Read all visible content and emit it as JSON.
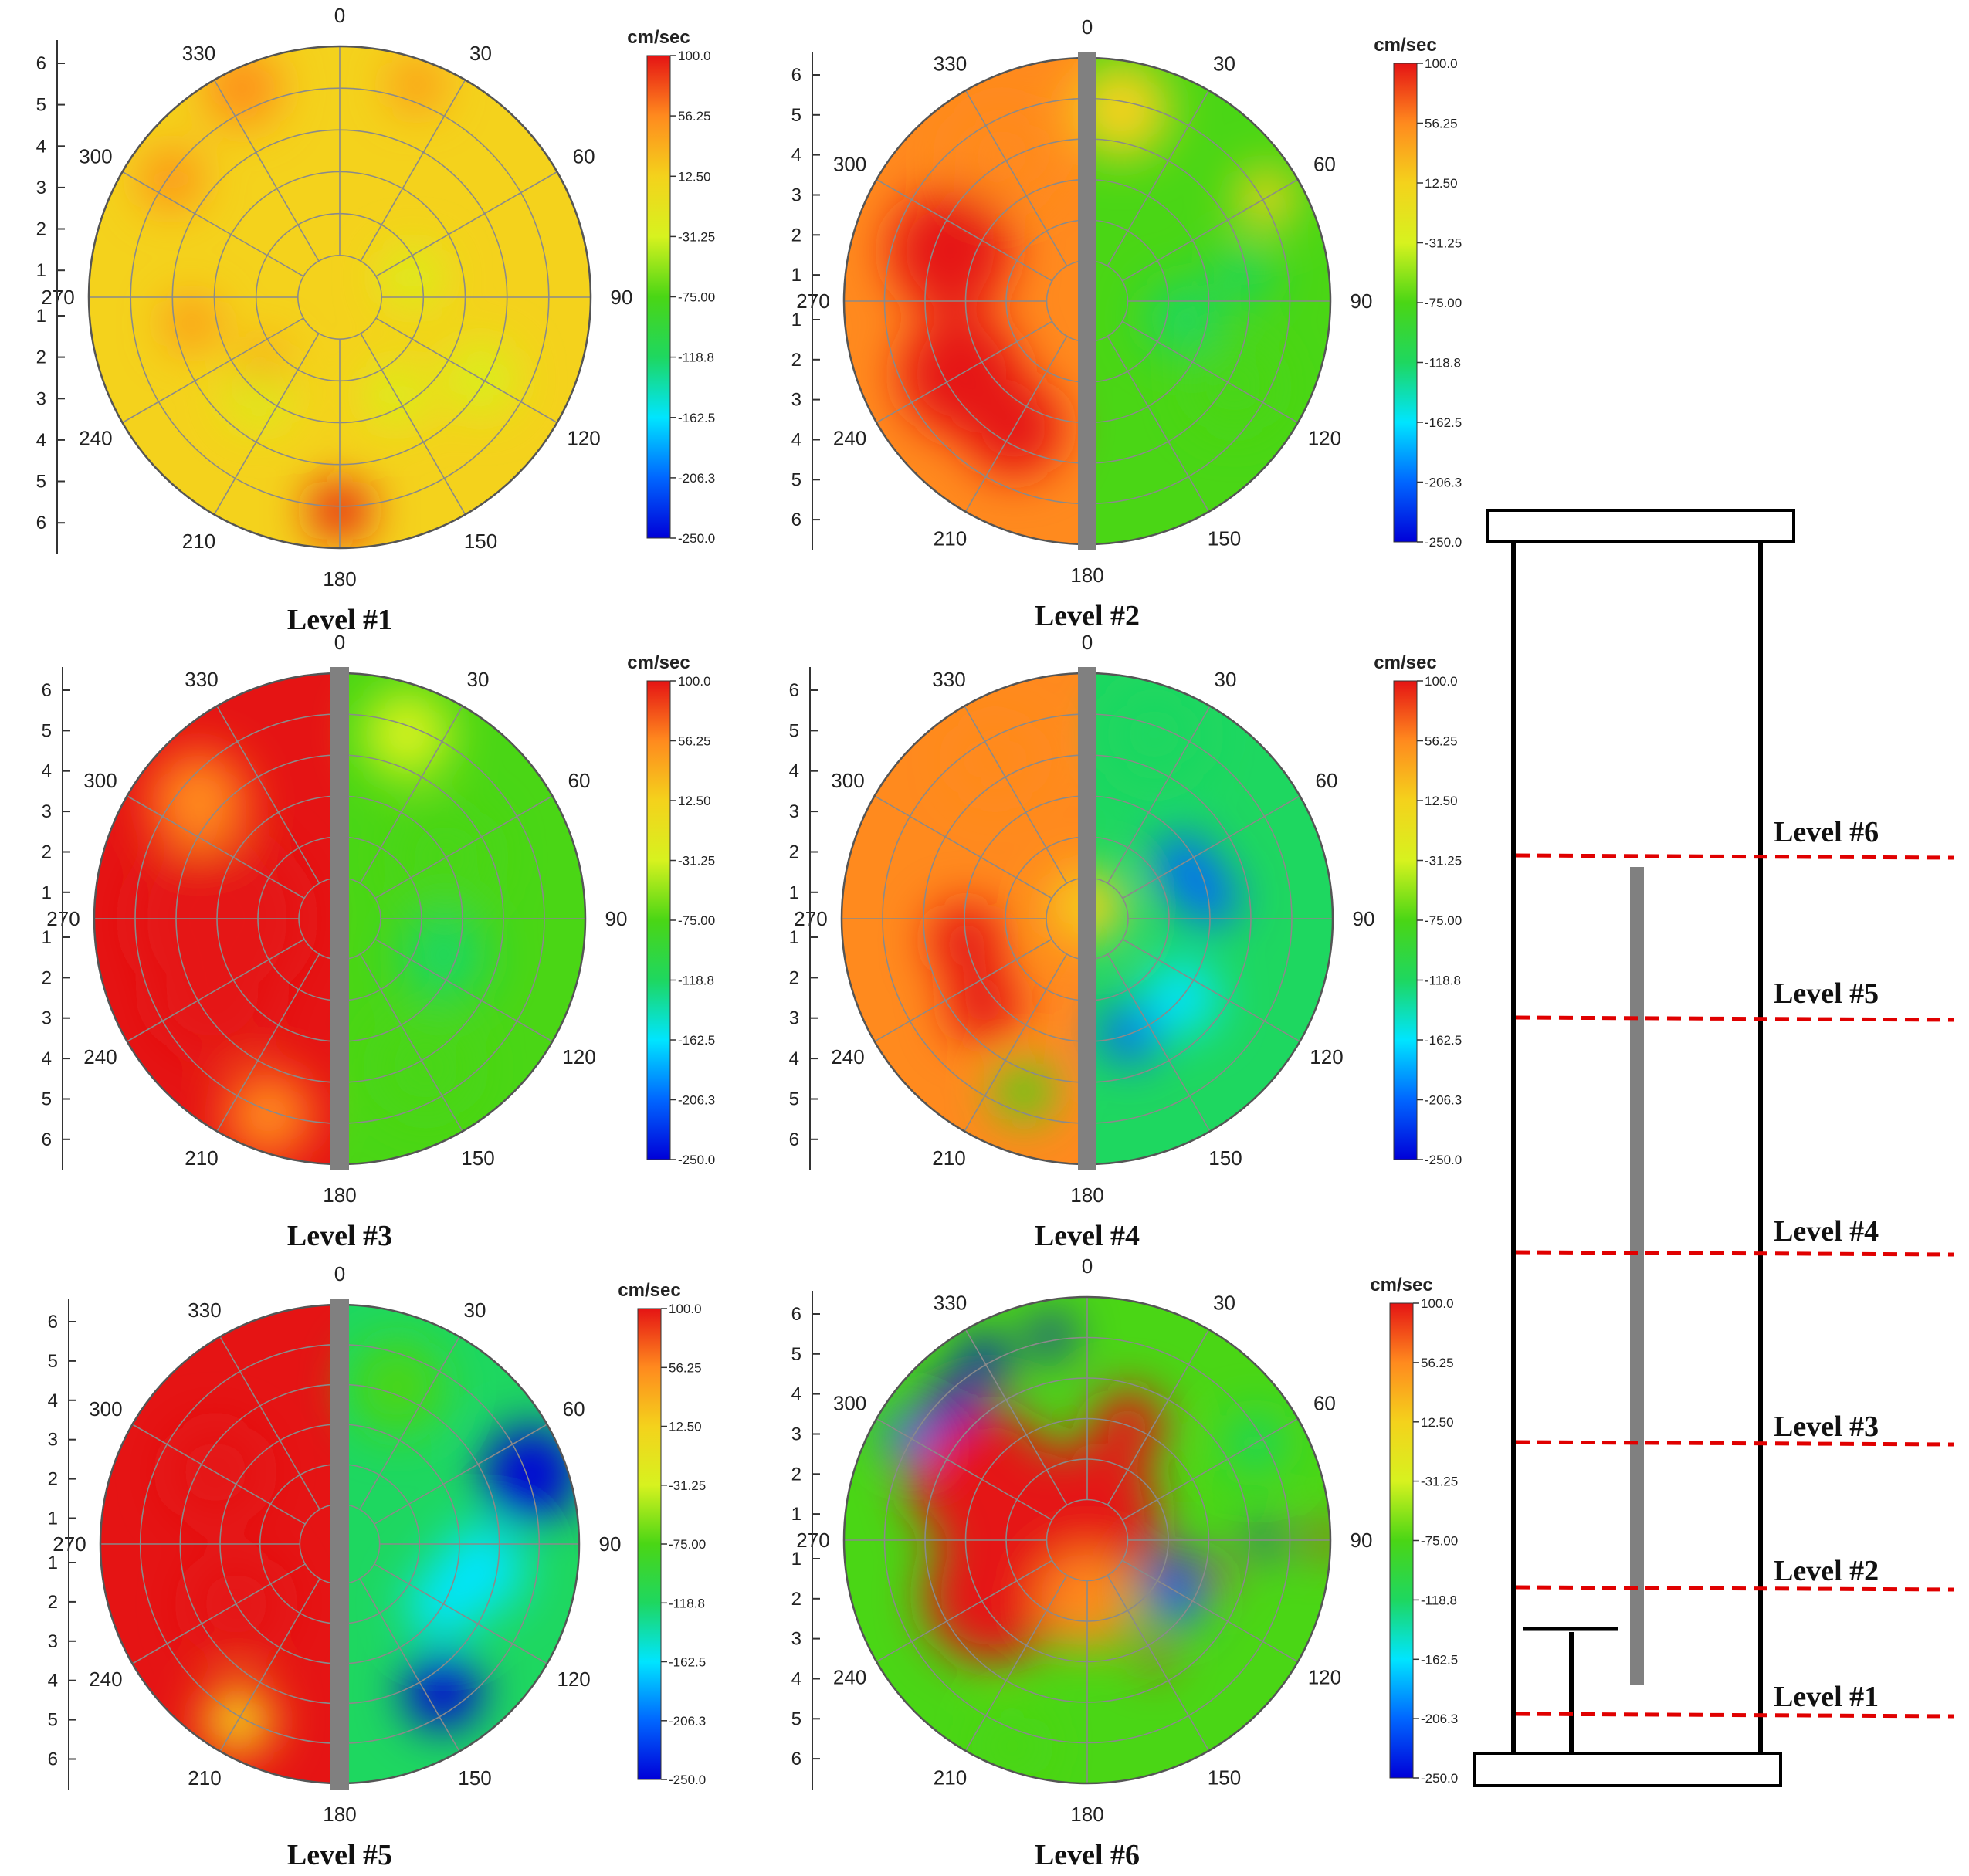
{
  "figure": {
    "colorbar": {
      "unit": "cm/sec",
      "ticks": [
        "100.0",
        "56.25",
        "12.50",
        "-31.25",
        "-75.00",
        "-118.8",
        "-162.5",
        "-206.3",
        "-250.0"
      ],
      "colors": [
        "#0000d8",
        "#0066ff",
        "#00e5ff",
        "#1ed760",
        "#4ad615",
        "#d7f21f",
        "#f4d21c",
        "#ff8a1e",
        "#e51414"
      ]
    },
    "angle_labels": [
      "0",
      "30",
      "60",
      "90",
      "120",
      "150",
      "180",
      "210",
      "240",
      "270",
      "300",
      "330"
    ],
    "radial_ticks": [
      "6",
      "5",
      "4",
      "3",
      "2",
      "1",
      "1",
      "2",
      "3",
      "4",
      "5",
      "6"
    ],
    "probe_color": "#808080",
    "levels_marker_color": "#e00000"
  },
  "chart_data": [
    {
      "type": "heatmap",
      "subtype": "polar-contour",
      "title": "Level #1",
      "value_range": [
        -250.0,
        100.0
      ],
      "unit": "cm/sec",
      "probe_shown": false,
      "regions": [
        {
          "location": "most of disk",
          "level": "near 0"
        },
        {
          "location": "305° near rim",
          "level": "high"
        },
        {
          "location": "180° near rim",
          "level": "high"
        },
        {
          "location": "scattered patches",
          "level": "slightly negative"
        }
      ]
    },
    {
      "type": "heatmap",
      "subtype": "polar-contour",
      "title": "Level #2",
      "value_range": [
        -250.0,
        100.0
      ],
      "unit": "cm/sec",
      "probe_shown": true,
      "regions": [
        {
          "location": "left half (180°–360°)",
          "level": "high"
        },
        {
          "location": "right half (0°–180°)",
          "level": "negative"
        }
      ]
    },
    {
      "type": "heatmap",
      "subtype": "polar-contour",
      "title": "Level #3",
      "value_range": [
        -250.0,
        100.0
      ],
      "unit": "cm/sec",
      "probe_shown": true,
      "regions": [
        {
          "location": "left half",
          "level": "high"
        },
        {
          "location": "right half",
          "level": "negative"
        }
      ]
    },
    {
      "type": "heatmap",
      "subtype": "polar-contour",
      "title": "Level #4",
      "value_range": [
        -250.0,
        100.0
      ],
      "unit": "cm/sec",
      "probe_shown": true,
      "regions": [
        {
          "location": "left half",
          "level": "moderately high"
        },
        {
          "location": "right half",
          "level": "negative"
        },
        {
          "location": "40°–80° and 150°–170° mid-radius",
          "level": "strongly negative"
        }
      ]
    },
    {
      "type": "heatmap",
      "subtype": "polar-contour",
      "title": "Level #5",
      "value_range": [
        -250.0,
        100.0
      ],
      "unit": "cm/sec",
      "probe_shown": true,
      "regions": [
        {
          "location": "left half",
          "level": "high"
        },
        {
          "location": "right half",
          "level": "negative"
        },
        {
          "location": "60°–90° rim and 140°–160° rim",
          "level": "strongly negative"
        }
      ]
    },
    {
      "type": "heatmap",
      "subtype": "polar-contour",
      "title": "Level #6",
      "value_range": [
        -250.0,
        100.0
      ],
      "unit": "cm/sec",
      "probe_shown": false,
      "regions": [
        {
          "location": "center, left and top",
          "level": "high"
        },
        {
          "location": "outer ring",
          "level": "negative"
        },
        {
          "location": "300°–340° rim, 90° rim, 110°–130° inner",
          "level": "strongly negative"
        }
      ]
    }
  ],
  "schematic": {
    "level_labels": [
      "Level #6",
      "Level #5",
      "Level #4",
      "Level #3",
      "Level #2",
      "Level #1"
    ]
  }
}
